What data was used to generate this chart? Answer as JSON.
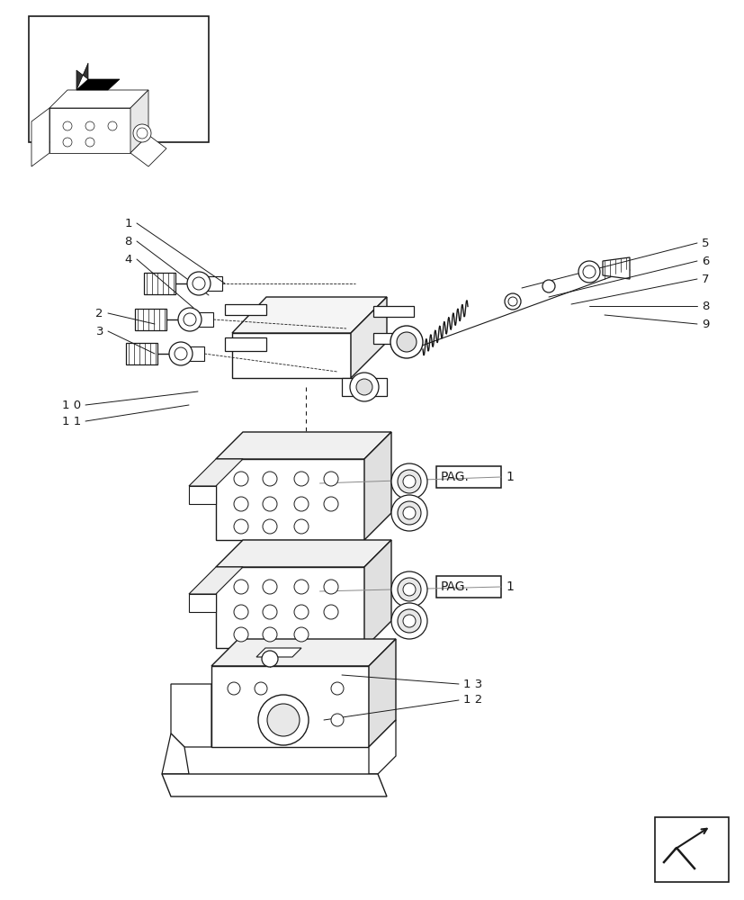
{
  "bg_color": "#ffffff",
  "lc": "#1a1a1a",
  "llc": "#888888",
  "fig_w": 8.28,
  "fig_h": 10.0,
  "dpi": 100
}
